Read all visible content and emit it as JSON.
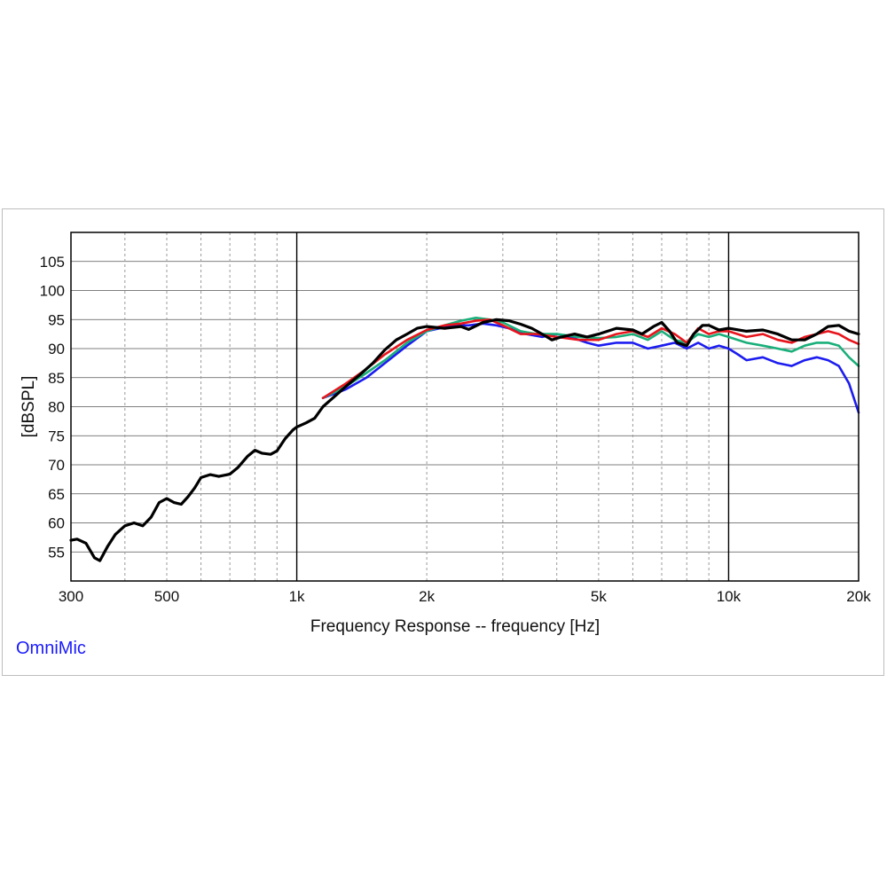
{
  "brand": "OmniMic",
  "colors": {
    "black": "#000000",
    "red": "#e8141c",
    "green": "#1aaf7a",
    "blue": "#1c1cf0",
    "grid": "#9a9a9a"
  },
  "chart_data": {
    "type": "line",
    "title": "",
    "xlabel": "Frequency Response -- frequency [Hz]",
    "ylabel": "[dBSPL]",
    "x_scale": "log",
    "xlim": [
      300,
      20000
    ],
    "ylim": [
      50,
      110
    ],
    "x_major_ticks": [
      1000,
      10000
    ],
    "x_tick_labels": [
      {
        "value": 300,
        "label": "300"
      },
      {
        "value": 500,
        "label": "500"
      },
      {
        "value": 1000,
        "label": "1k"
      },
      {
        "value": 2000,
        "label": "2k"
      },
      {
        "value": 5000,
        "label": "5k"
      },
      {
        "value": 10000,
        "label": "10k"
      },
      {
        "value": 20000,
        "label": "20k"
      }
    ],
    "x_minor_ticks": [
      400,
      500,
      600,
      700,
      800,
      900,
      2000,
      3000,
      4000,
      5000,
      6000,
      7000,
      8000,
      9000
    ],
    "y_ticks": [
      55,
      60,
      65,
      70,
      75,
      80,
      85,
      90,
      95,
      100,
      105
    ],
    "grid": true,
    "legend": "none",
    "series": [
      {
        "color": "#1c1cf0",
        "points": [
          [
            1150,
            81.5
          ],
          [
            1300,
            83
          ],
          [
            1450,
            85
          ],
          [
            1600,
            87.5
          ],
          [
            1800,
            90.5
          ],
          [
            2000,
            93
          ],
          [
            2300,
            94
          ],
          [
            2500,
            94
          ],
          [
            2700,
            94.3
          ],
          [
            2900,
            94
          ],
          [
            3100,
            93.5
          ],
          [
            3400,
            92.5
          ],
          [
            3700,
            92
          ],
          [
            4000,
            92.5
          ],
          [
            4300,
            92
          ],
          [
            4700,
            91
          ],
          [
            5000,
            90.5
          ],
          [
            5500,
            91
          ],
          [
            6000,
            91
          ],
          [
            6500,
            90
          ],
          [
            7000,
            90.5
          ],
          [
            7500,
            91
          ],
          [
            8000,
            90
          ],
          [
            8500,
            91
          ],
          [
            9000,
            90
          ],
          [
            9500,
            90.5
          ],
          [
            10000,
            90
          ],
          [
            10500,
            89
          ],
          [
            11000,
            88
          ],
          [
            12000,
            88.5
          ],
          [
            13000,
            87.5
          ],
          [
            14000,
            87
          ],
          [
            15000,
            88
          ],
          [
            16000,
            88.5
          ],
          [
            17000,
            88
          ],
          [
            18000,
            87
          ],
          [
            19000,
            84
          ],
          [
            20000,
            79
          ]
        ]
      },
      {
        "color": "#1aaf7a",
        "points": [
          [
            1150,
            81.5
          ],
          [
            1300,
            83.5
          ],
          [
            1450,
            85.8
          ],
          [
            1600,
            88
          ],
          [
            1800,
            91
          ],
          [
            2000,
            93
          ],
          [
            2200,
            94
          ],
          [
            2400,
            94.8
          ],
          [
            2600,
            95.3
          ],
          [
            2800,
            95
          ],
          [
            3000,
            94.5
          ],
          [
            3300,
            93
          ],
          [
            3600,
            92.5
          ],
          [
            4000,
            92.5
          ],
          [
            4500,
            92
          ],
          [
            5000,
            91.8
          ],
          [
            5500,
            92
          ],
          [
            6000,
            92.5
          ],
          [
            6500,
            91.5
          ],
          [
            7000,
            93
          ],
          [
            7500,
            91.5
          ],
          [
            8000,
            91
          ],
          [
            8500,
            92.5
          ],
          [
            9000,
            92
          ],
          [
            9500,
            92.5
          ],
          [
            10000,
            92
          ],
          [
            11000,
            91
          ],
          [
            12000,
            90.5
          ],
          [
            13000,
            90
          ],
          [
            14000,
            89.5
          ],
          [
            15000,
            90.5
          ],
          [
            16000,
            91
          ],
          [
            17000,
            91
          ],
          [
            18000,
            90.5
          ],
          [
            19000,
            88.5
          ],
          [
            20000,
            87
          ]
        ]
      },
      {
        "color": "#e8141c",
        "points": [
          [
            1150,
            81.5
          ],
          [
            1300,
            84
          ],
          [
            1450,
            86.5
          ],
          [
            1600,
            89
          ],
          [
            1800,
            91.5
          ],
          [
            2000,
            93.2
          ],
          [
            2200,
            94
          ],
          [
            2400,
            94.3
          ],
          [
            2600,
            94.8
          ],
          [
            2800,
            95
          ],
          [
            3000,
            94
          ],
          [
            3300,
            92.5
          ],
          [
            3600,
            92.5
          ],
          [
            4000,
            92
          ],
          [
            4500,
            91.5
          ],
          [
            5000,
            91.5
          ],
          [
            5500,
            92.5
          ],
          [
            6000,
            93
          ],
          [
            6500,
            92
          ],
          [
            7000,
            93.5
          ],
          [
            7500,
            92.5
          ],
          [
            8000,
            91
          ],
          [
            8500,
            93.5
          ],
          [
            9000,
            92.5
          ],
          [
            9500,
            93
          ],
          [
            10000,
            93
          ],
          [
            11000,
            92
          ],
          [
            12000,
            92.5
          ],
          [
            13000,
            91.5
          ],
          [
            14000,
            91
          ],
          [
            15000,
            92
          ],
          [
            16000,
            92.5
          ],
          [
            17000,
            93
          ],
          [
            18000,
            92.5
          ],
          [
            19000,
            91.5
          ],
          [
            20000,
            90.8
          ]
        ]
      },
      {
        "color": "#000000",
        "points": [
          [
            300,
            57
          ],
          [
            310,
            57.2
          ],
          [
            325,
            56.5
          ],
          [
            340,
            54
          ],
          [
            350,
            53.5
          ],
          [
            365,
            56
          ],
          [
            380,
            58
          ],
          [
            400,
            59.5
          ],
          [
            420,
            60
          ],
          [
            440,
            59.5
          ],
          [
            460,
            61
          ],
          [
            480,
            63.5
          ],
          [
            500,
            64.2
          ],
          [
            520,
            63.5
          ],
          [
            540,
            63.2
          ],
          [
            560,
            64.5
          ],
          [
            580,
            66
          ],
          [
            600,
            67.8
          ],
          [
            630,
            68.3
          ],
          [
            660,
            68
          ],
          [
            700,
            68.4
          ],
          [
            730,
            69.5
          ],
          [
            770,
            71.5
          ],
          [
            800,
            72.5
          ],
          [
            830,
            72
          ],
          [
            870,
            71.8
          ],
          [
            900,
            72.4
          ],
          [
            940,
            74.5
          ],
          [
            980,
            76
          ],
          [
            1000,
            76.5
          ],
          [
            1050,
            77.2
          ],
          [
            1100,
            78
          ],
          [
            1150,
            80
          ],
          [
            1200,
            81.2
          ],
          [
            1300,
            83.5
          ],
          [
            1400,
            85.5
          ],
          [
            1500,
            87.5
          ],
          [
            1600,
            89.8
          ],
          [
            1700,
            91.5
          ],
          [
            1800,
            92.5
          ],
          [
            1900,
            93.5
          ],
          [
            2000,
            93.8
          ],
          [
            2200,
            93.5
          ],
          [
            2400,
            93.8
          ],
          [
            2500,
            93.3
          ],
          [
            2700,
            94.5
          ],
          [
            2900,
            95
          ],
          [
            3100,
            94.8
          ],
          [
            3300,
            94.2
          ],
          [
            3500,
            93.5
          ],
          [
            3700,
            92.5
          ],
          [
            3900,
            91.5
          ],
          [
            4100,
            92
          ],
          [
            4400,
            92.5
          ],
          [
            4700,
            92
          ],
          [
            5000,
            92.5
          ],
          [
            5500,
            93.5
          ],
          [
            6000,
            93.2
          ],
          [
            6300,
            92.5
          ],
          [
            6700,
            93.8
          ],
          [
            7000,
            94.5
          ],
          [
            7300,
            93
          ],
          [
            7600,
            91
          ],
          [
            8000,
            90.5
          ],
          [
            8300,
            92.5
          ],
          [
            8700,
            94
          ],
          [
            9000,
            94
          ],
          [
            9500,
            93.2
          ],
          [
            10000,
            93.5
          ],
          [
            11000,
            93
          ],
          [
            12000,
            93.2
          ],
          [
            13000,
            92.5
          ],
          [
            14000,
            91.5
          ],
          [
            15000,
            91.5
          ],
          [
            16000,
            92.5
          ],
          [
            17000,
            93.8
          ],
          [
            18000,
            94
          ],
          [
            19000,
            93
          ],
          [
            20000,
            92.5
          ]
        ]
      }
    ]
  }
}
